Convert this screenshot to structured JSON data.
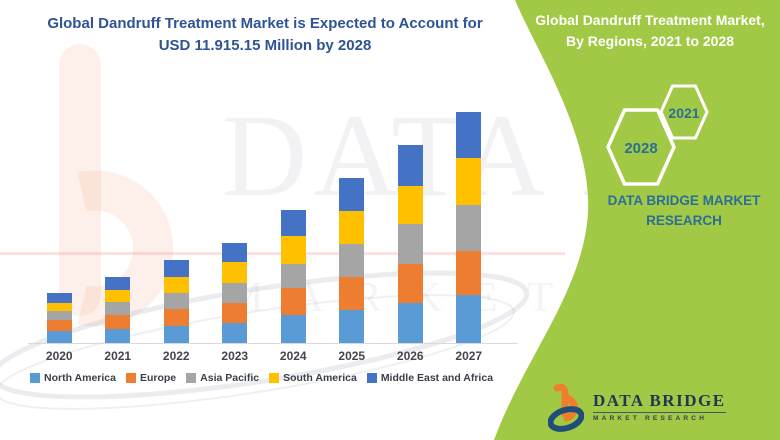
{
  "page": {
    "title_line1": "Global Dandruff Treatment Market is Expected to Account for",
    "title_line2": "USD 11.915.15 Million by 2028"
  },
  "chart_data": {
    "type": "bar",
    "stacked": true,
    "title": "Global Dandruff Treatment Market is Expected to Account for USD 11.915.15 Million by 2028",
    "xlabel": "",
    "ylabel": "",
    "y_axis_shown": false,
    "grid": false,
    "legend_position": "bottom",
    "value_units": "relative height, px-estimated (no value axis shown in image)",
    "categories": [
      "2020",
      "2021",
      "2022",
      "2023",
      "2024",
      "2025",
      "2026",
      "2027"
    ],
    "series": [
      {
        "name": "North America",
        "color": "#5B9BD5",
        "values": [
          12,
          14,
          17,
          20,
          28,
          33,
          40,
          48
        ]
      },
      {
        "name": "Europe",
        "color": "#ED7D31",
        "values": [
          11,
          14,
          17,
          20,
          27,
          33,
          39,
          44
        ]
      },
      {
        "name": "Asia Pacific",
        "color": "#A5A5A5",
        "values": [
          9,
          13,
          16,
          20,
          24,
          33,
          40,
          46
        ]
      },
      {
        "name": "South America",
        "color": "#FFC000",
        "values": [
          8,
          12,
          16,
          21,
          28,
          33,
          38,
          47
        ]
      },
      {
        "name": "Middle East and Africa",
        "color": "#4472C4",
        "values": [
          10,
          13,
          17,
          19,
          26,
          33,
          41,
          46
        ]
      }
    ],
    "stack_order": "bottom to top: North America, Europe, Asia Pacific, South America, Middle East and Africa",
    "totals": [
      50,
      66,
      83,
      100,
      133,
      165,
      198,
      231
    ]
  },
  "right_panel": {
    "title_line1": "Global Dandruff Treatment Market,",
    "title_line2": "By Regions, 2021 to 2028",
    "hex_large_label": "2028",
    "hex_small_label": "2021",
    "brand_line1": "DATA BRIDGE MARKET",
    "brand_line2": "RESEARCH",
    "background_color": "#A2C945",
    "accent_text_color": "#2C6E96"
  },
  "logo": {
    "name": "DATA BRIDGE",
    "subtitle": "MARKET RESEARCH"
  },
  "watermark": {
    "text1": "DATA BRIDGE",
    "text2": "MARKET RESEARCH"
  },
  "colors": {
    "title_navy": "#2F5496",
    "panel_green": "#A2C945",
    "logo_orange": "#F07F2D",
    "logo_navy": "#1F4E79"
  }
}
